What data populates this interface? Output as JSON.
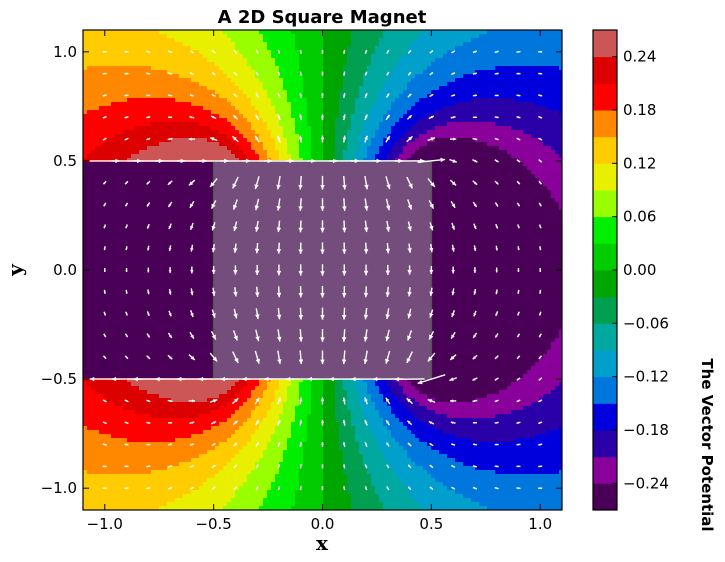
{
  "chart_data": {
    "type": "heatmap",
    "title": "A 2D Square Magnet",
    "xlabel": "x",
    "ylabel": "y",
    "xlim": [
      -1.1,
      1.1
    ],
    "ylim": [
      -1.1,
      1.1
    ],
    "x_ticks": [
      "−1.0",
      "−0.5",
      "0.0",
      "0.5",
      "1.0"
    ],
    "y_ticks": [
      "−1.0",
      "−0.5",
      "0.0",
      "0.5",
      "1.0"
    ],
    "x_tick_values": [
      -1.0,
      -0.5,
      0.0,
      0.5,
      1.0
    ],
    "y_tick_values": [
      -1.0,
      -0.5,
      0.0,
      0.5,
      1.0
    ],
    "magnet_region": {
      "x": [
        -0.5,
        0.5
      ],
      "y": [
        -0.5,
        0.5
      ]
    },
    "field_arrows": "quiver",
    "grid": false,
    "colorbar": {
      "label": "The Vector Potential",
      "levels": [
        -0.27,
        -0.24,
        -0.21,
        -0.18,
        -0.15,
        -0.12,
        -0.09,
        -0.06,
        -0.03,
        0.0,
        0.03,
        0.06,
        0.09,
        0.12,
        0.15,
        0.18,
        0.21,
        0.24,
        0.27
      ],
      "tick_labels": [
        "−0.24",
        "−0.18",
        "−0.12",
        "−0.06",
        "0.00",
        "0.06",
        "0.12",
        "0.18",
        "0.24"
      ],
      "tick_values": [
        -0.24,
        -0.18,
        -0.12,
        -0.06,
        0.0,
        0.06,
        0.12,
        0.18,
        0.24
      ],
      "colors": [
        "#4a0057",
        "#8a009a",
        "#2a00a8",
        "#0000dd",
        "#0077dd",
        "#009fcc",
        "#00a9a0",
        "#00a050",
        "#00a500",
        "#00cc00",
        "#00ee00",
        "#99ff00",
        "#e8f000",
        "#ffcc00",
        "#ff8800",
        "#ff0000",
        "#dd0000",
        "#cc5555"
      ]
    }
  }
}
